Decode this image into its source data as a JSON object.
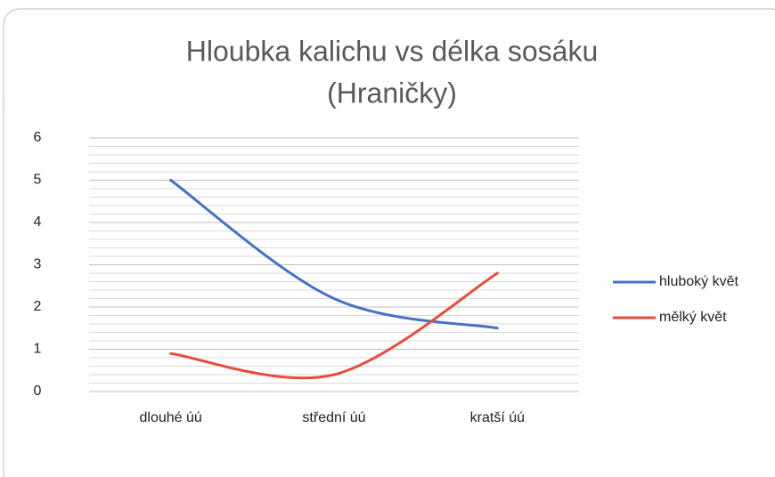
{
  "chart_data": {
    "type": "line",
    "title": [
      "Hloubka kalichu vs délka sosáku",
      "(Hraničky)"
    ],
    "categories": [
      "dlouhé úú",
      "střední úú",
      "kratší úú"
    ],
    "series": [
      {
        "name": "hluboký květ",
        "color": "#4472c4",
        "values": [
          5.0,
          2.2,
          1.5
        ]
      },
      {
        "name": "mělký květ",
        "color": "#e84c3d",
        "values": [
          0.9,
          0.4,
          2.8
        ]
      }
    ],
    "ylim": [
      0,
      6
    ],
    "yticks": [
      0,
      1,
      2,
      3,
      4,
      5,
      6
    ],
    "grid": true,
    "minor_gridlines_per_tick": 5,
    "smooth": true,
    "legend": "right"
  }
}
